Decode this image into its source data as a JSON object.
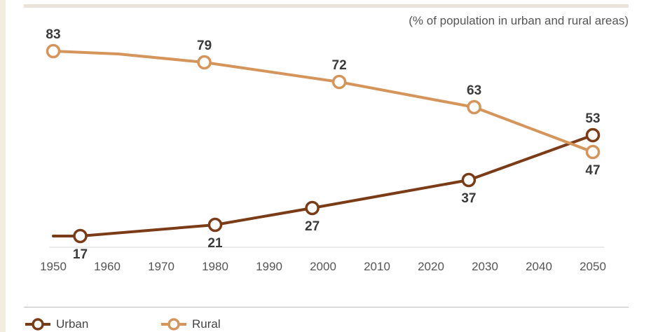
{
  "chart_data": {
    "type": "line",
    "subtitle": "(% of population in urban and rural areas)",
    "x_ticks": [
      1950,
      1960,
      1970,
      1980,
      1990,
      2000,
      2010,
      2020,
      2030,
      2040,
      2050
    ],
    "xlim": [
      1950,
      2050
    ],
    "ylim": [
      10,
      90
    ],
    "grid": false,
    "legend_position": "bottom-left",
    "series": [
      {
        "name": "Urban",
        "color": "#7a3b17",
        "line": [
          {
            "x": 1950,
            "y": 17
          },
          {
            "x": 1955,
            "y": 17
          },
          {
            "x": 1980,
            "y": 21
          },
          {
            "x": 1998,
            "y": 27
          },
          {
            "x": 2027,
            "y": 37
          },
          {
            "x": 2050,
            "y": 53
          }
        ],
        "points": [
          {
            "x": 1955,
            "y": 17,
            "label": "17"
          },
          {
            "x": 1980,
            "y": 21,
            "label": "21"
          },
          {
            "x": 1998,
            "y": 27,
            "label": "27"
          },
          {
            "x": 2027,
            "y": 37,
            "label": "37"
          },
          {
            "x": 2050,
            "y": 53,
            "label": "53"
          }
        ]
      },
      {
        "name": "Rural",
        "color": "#d5955a",
        "line": [
          {
            "x": 1950,
            "y": 83
          },
          {
            "x": 1962,
            "y": 82
          },
          {
            "x": 1978,
            "y": 79
          },
          {
            "x": 2003,
            "y": 72
          },
          {
            "x": 2028,
            "y": 63
          },
          {
            "x": 2050,
            "y": 47
          }
        ],
        "points": [
          {
            "x": 1950,
            "y": 83,
            "label": "83"
          },
          {
            "x": 1978,
            "y": 79,
            "label": "79"
          },
          {
            "x": 2003,
            "y": 72,
            "label": "72"
          },
          {
            "x": 2028,
            "y": 63,
            "label": "63"
          },
          {
            "x": 2050,
            "y": 47,
            "label": "47"
          }
        ]
      }
    ]
  }
}
